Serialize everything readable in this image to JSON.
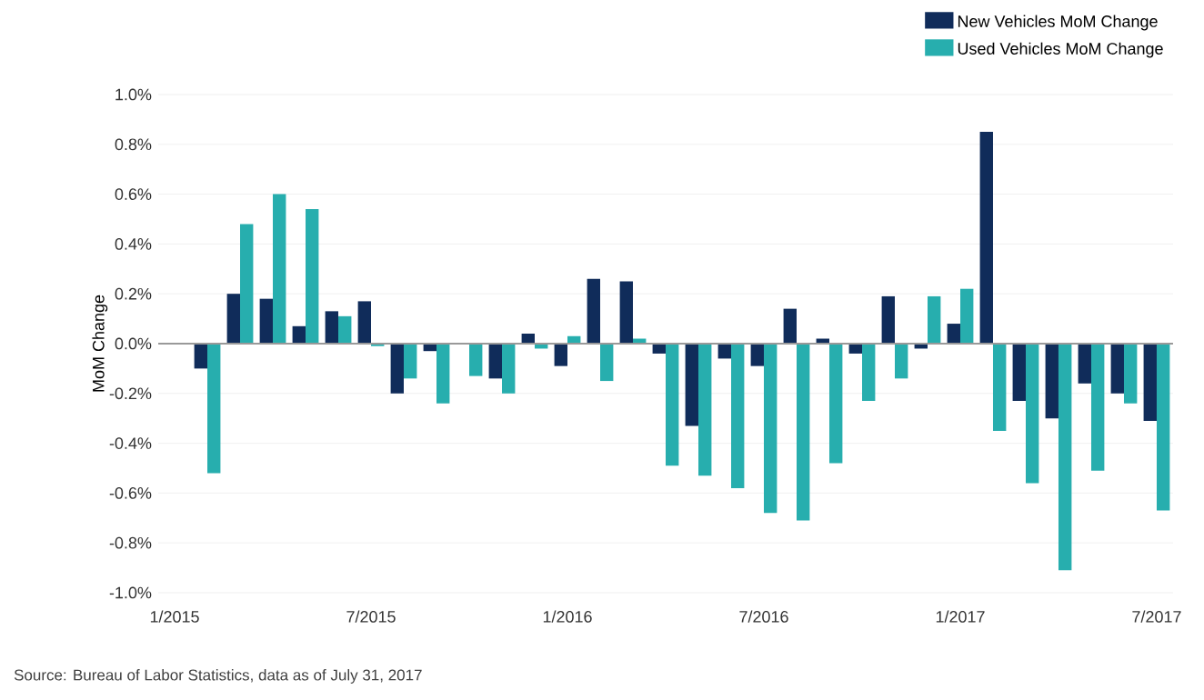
{
  "chart_data": {
    "type": "bar",
    "ylabel": "MoM Change",
    "categories": [
      "1/2015",
      null,
      null,
      null,
      null,
      null,
      "7/2015",
      null,
      null,
      null,
      null,
      null,
      "1/2016",
      null,
      null,
      null,
      null,
      null,
      "7/2016",
      null,
      null,
      null,
      null,
      null,
      "1/2017",
      null,
      null,
      null,
      null,
      null,
      "7/2017"
    ],
    "series": [
      {
        "name": "New Vehicles MoM Change",
        "color": "#102c5a",
        "values": [
          null,
          -0.1,
          0.2,
          0.18,
          0.07,
          0.13,
          0.17,
          -0.2,
          -0.03,
          null,
          -0.14,
          0.04,
          -0.09,
          0.26,
          0.25,
          -0.04,
          -0.33,
          -0.06,
          -0.09,
          0.14,
          0.02,
          -0.04,
          0.19,
          -0.02,
          0.08,
          0.85,
          -0.23,
          -0.3,
          -0.16,
          -0.2,
          -0.31
        ]
      },
      {
        "name": "Used Vehicles MoM Change",
        "color": "#27aeae",
        "values": [
          null,
          -0.52,
          0.48,
          0.6,
          0.54,
          0.11,
          -0.01,
          -0.14,
          -0.24,
          -0.13,
          -0.2,
          -0.02,
          0.03,
          -0.15,
          0.02,
          -0.49,
          -0.53,
          -0.58,
          -0.68,
          -0.71,
          -0.48,
          -0.23,
          -0.14,
          0.19,
          0.22,
          -0.35,
          -0.56,
          -0.91,
          -0.51,
          -0.24,
          -0.67
        ]
      }
    ],
    "ylim": [
      -1.0,
      1.0
    ],
    "yticks": [
      {
        "value": -1.0,
        "label": "-1.0%"
      },
      {
        "value": -0.8,
        "label": "-0.8%"
      },
      {
        "value": -0.6,
        "label": "-0.6%"
      },
      {
        "value": -0.4,
        "label": "-0.4%"
      },
      {
        "value": -0.2,
        "label": "-0.2%"
      },
      {
        "value": 0.0,
        "label": "0.0%"
      },
      {
        "value": 0.2,
        "label": "0.2%"
      },
      {
        "value": 0.4,
        "label": "0.4%"
      },
      {
        "value": 0.6,
        "label": "0.6%"
      },
      {
        "value": 0.8,
        "label": "0.8%"
      },
      {
        "value": 1.0,
        "label": "1.0%"
      }
    ],
    "grid": "y",
    "legend": "top right",
    "annotations": [
      "Source: Bureau of Labor Statistics, data as of July 31, 2017"
    ]
  }
}
